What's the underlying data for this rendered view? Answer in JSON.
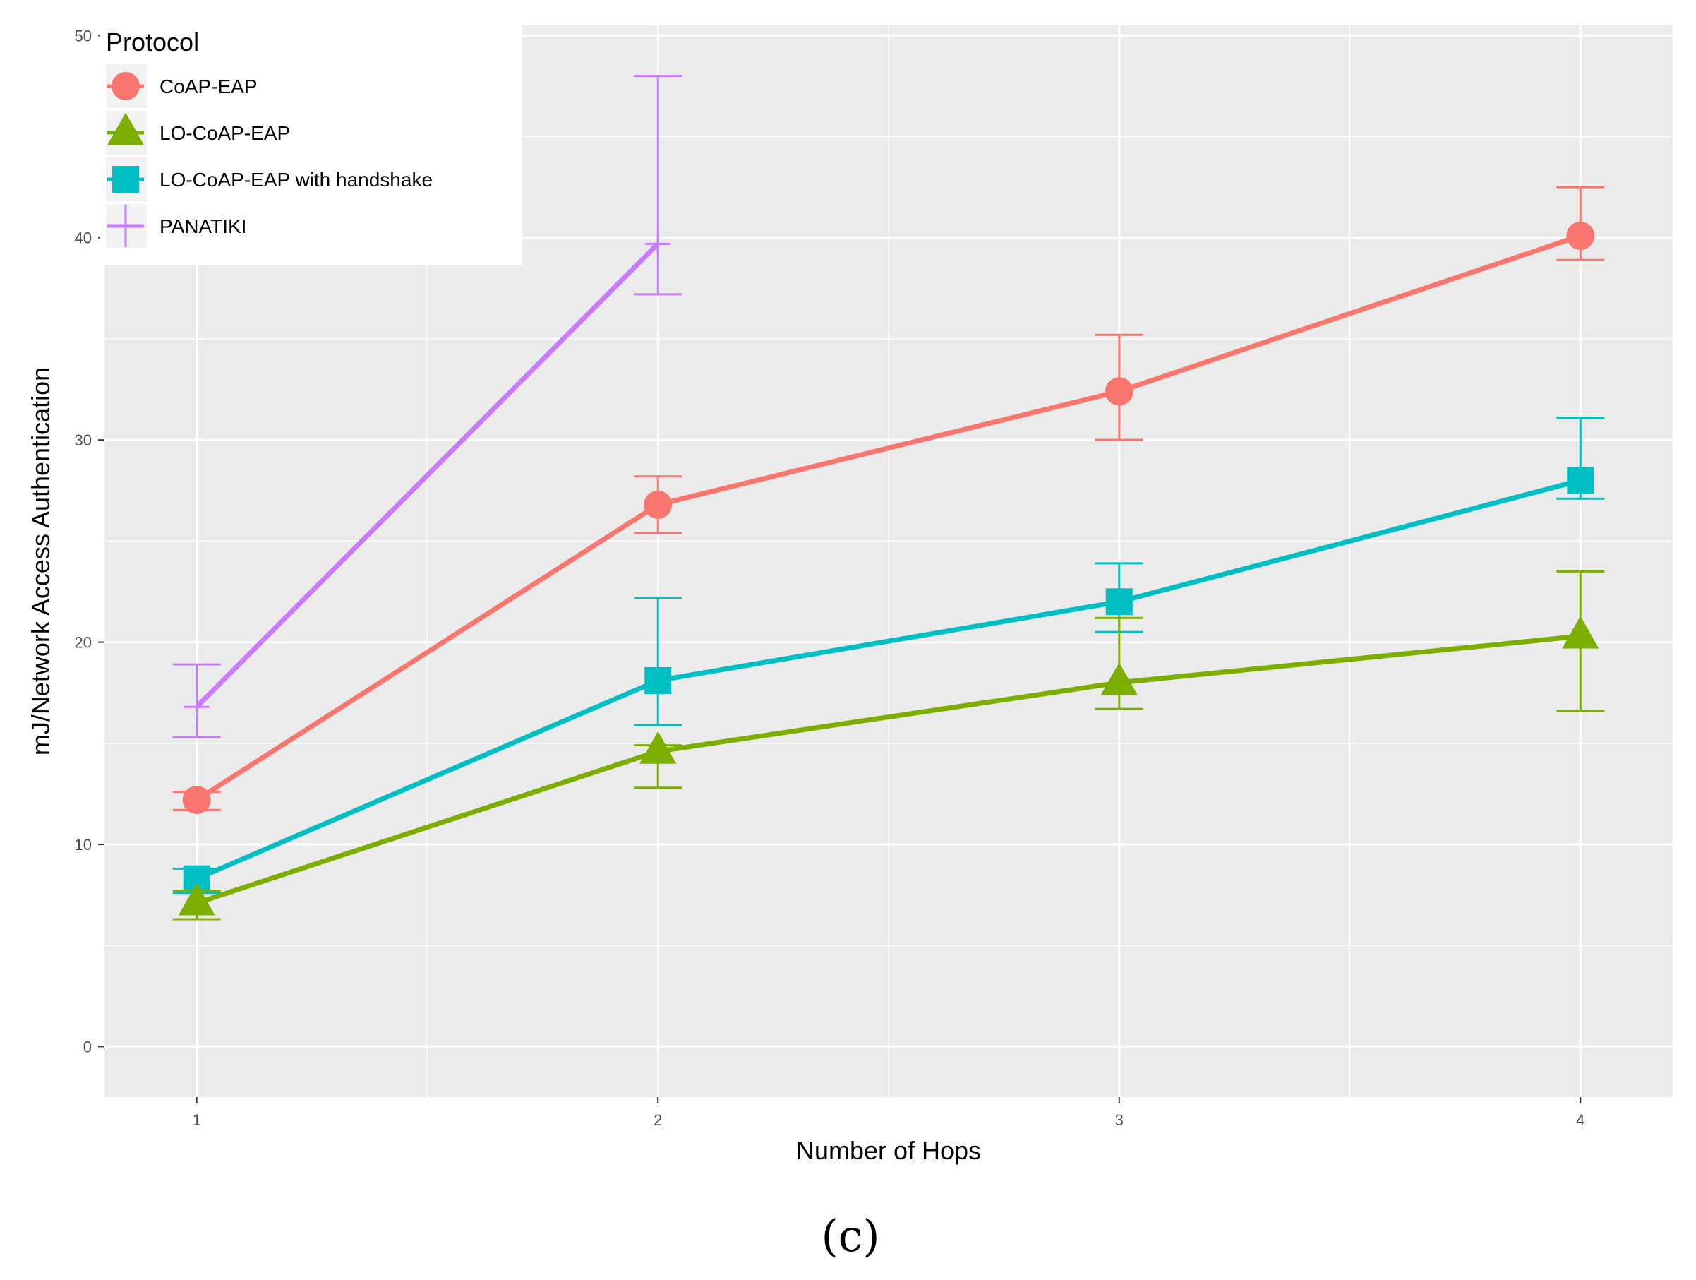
{
  "chart_data": {
    "type": "line",
    "xlabel": "Number of Hops",
    "ylabel": "mJ/Network Access Authentication",
    "x": [
      1,
      2,
      3,
      4
    ],
    "xticks": [
      "1",
      "2",
      "3",
      "4"
    ],
    "yticks": [
      "0",
      "10",
      "20",
      "30",
      "40",
      "50"
    ],
    "xlim": [
      0.8,
      4.2
    ],
    "ylim": [
      -2.5,
      50.5
    ],
    "legend": {
      "title": "Protocol",
      "position": "top-left"
    },
    "caption": "(c)",
    "series": [
      {
        "name": "PANATIKI",
        "color": "#C77CFF",
        "marker": "cross",
        "x": [
          1,
          2
        ],
        "values": [
          16.8,
          39.7
        ],
        "error_low": [
          15.3,
          37.2
        ],
        "error_high": [
          18.9,
          48.0
        ]
      },
      {
        "name": "CoAP-EAP",
        "color": "#F8766D",
        "marker": "circle",
        "x": [
          1,
          2,
          3,
          4
        ],
        "values": [
          12.2,
          26.8,
          32.4,
          40.1
        ],
        "error_low": [
          11.7,
          25.4,
          30.0,
          38.9
        ],
        "error_high": [
          12.6,
          28.2,
          35.2,
          42.5
        ]
      },
      {
        "name": "LO-CoAP-EAP with handshake",
        "color": "#00BFC4",
        "marker": "square",
        "x": [
          1,
          2,
          3,
          4
        ],
        "values": [
          8.3,
          18.1,
          22.0,
          28.0
        ],
        "error_low": [
          7.6,
          15.9,
          20.5,
          27.1
        ],
        "error_high": [
          8.8,
          22.2,
          23.9,
          31.1
        ]
      },
      {
        "name": "LO-CoAP-EAP",
        "color": "#7CAE00",
        "marker": "triangle",
        "x": [
          1,
          2,
          3,
          4
        ],
        "values": [
          7.1,
          14.6,
          18.0,
          20.3
        ],
        "error_low": [
          6.3,
          12.8,
          16.7,
          16.6
        ],
        "error_high": [
          7.7,
          14.9,
          21.2,
          23.5
        ]
      }
    ],
    "legend_order": [
      "CoAP-EAP",
      "LO-CoAP-EAP",
      "LO-CoAP-EAP with handshake",
      "PANATIKI"
    ]
  }
}
